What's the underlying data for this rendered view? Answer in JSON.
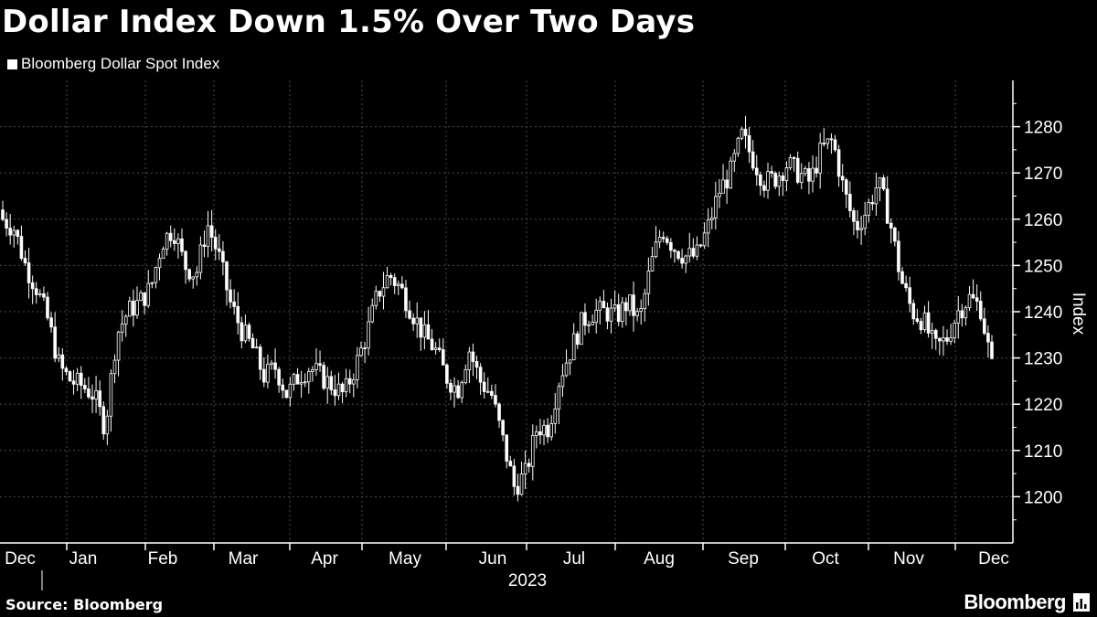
{
  "header": {
    "title": "Dollar Index Down 1.5% Over Two Days"
  },
  "footer": {
    "source": "Source: Bloomberg",
    "logo_text": "Bloomberg"
  },
  "colors": {
    "background": "#000000",
    "foreground": "#ffffff",
    "gridline": "#555555"
  },
  "chart_data": {
    "type": "candlestick",
    "series": [
      {
        "name": "Bloomberg Dollar Spot Index"
      }
    ],
    "ylabel": "Index",
    "xlabel": "",
    "ylim": [
      1190,
      1290
    ],
    "y_ticks": [
      1200,
      1210,
      1220,
      1230,
      1240,
      1250,
      1260,
      1270,
      1280
    ],
    "x_year_label": "2023",
    "x_ticks": [
      "Dec",
      "Jan",
      "Feb",
      "Mar",
      "Apr",
      "May",
      "Jun",
      "Jul",
      "Aug",
      "Sep",
      "Oct",
      "Nov",
      "Dec"
    ],
    "grid": true,
    "legend_position": "top-left",
    "values": [
      1260,
      1258,
      1250,
      1245,
      1238,
      1228,
      1225,
      1224,
      1222,
      1215,
      1235,
      1240,
      1242,
      1245,
      1255,
      1258,
      1250,
      1248,
      1259,
      1252,
      1242,
      1236,
      1232,
      1226,
      1228,
      1222,
      1226,
      1228,
      1226,
      1224,
      1222,
      1228,
      1235,
      1244,
      1248,
      1245,
      1240,
      1235,
      1232,
      1226,
      1223,
      1232,
      1225,
      1222,
      1212,
      1202,
      1205,
      1215,
      1215,
      1226,
      1232,
      1238,
      1240,
      1240,
      1239,
      1242,
      1238,
      1250,
      1258,
      1254,
      1252,
      1252,
      1258,
      1266,
      1270,
      1278,
      1273,
      1268,
      1269,
      1272,
      1270,
      1268,
      1275,
      1277,
      1266,
      1258,
      1262,
      1268,
      1260,
      1247,
      1240,
      1238,
      1232,
      1234,
      1240,
      1243,
      1241,
      1228
    ]
  }
}
